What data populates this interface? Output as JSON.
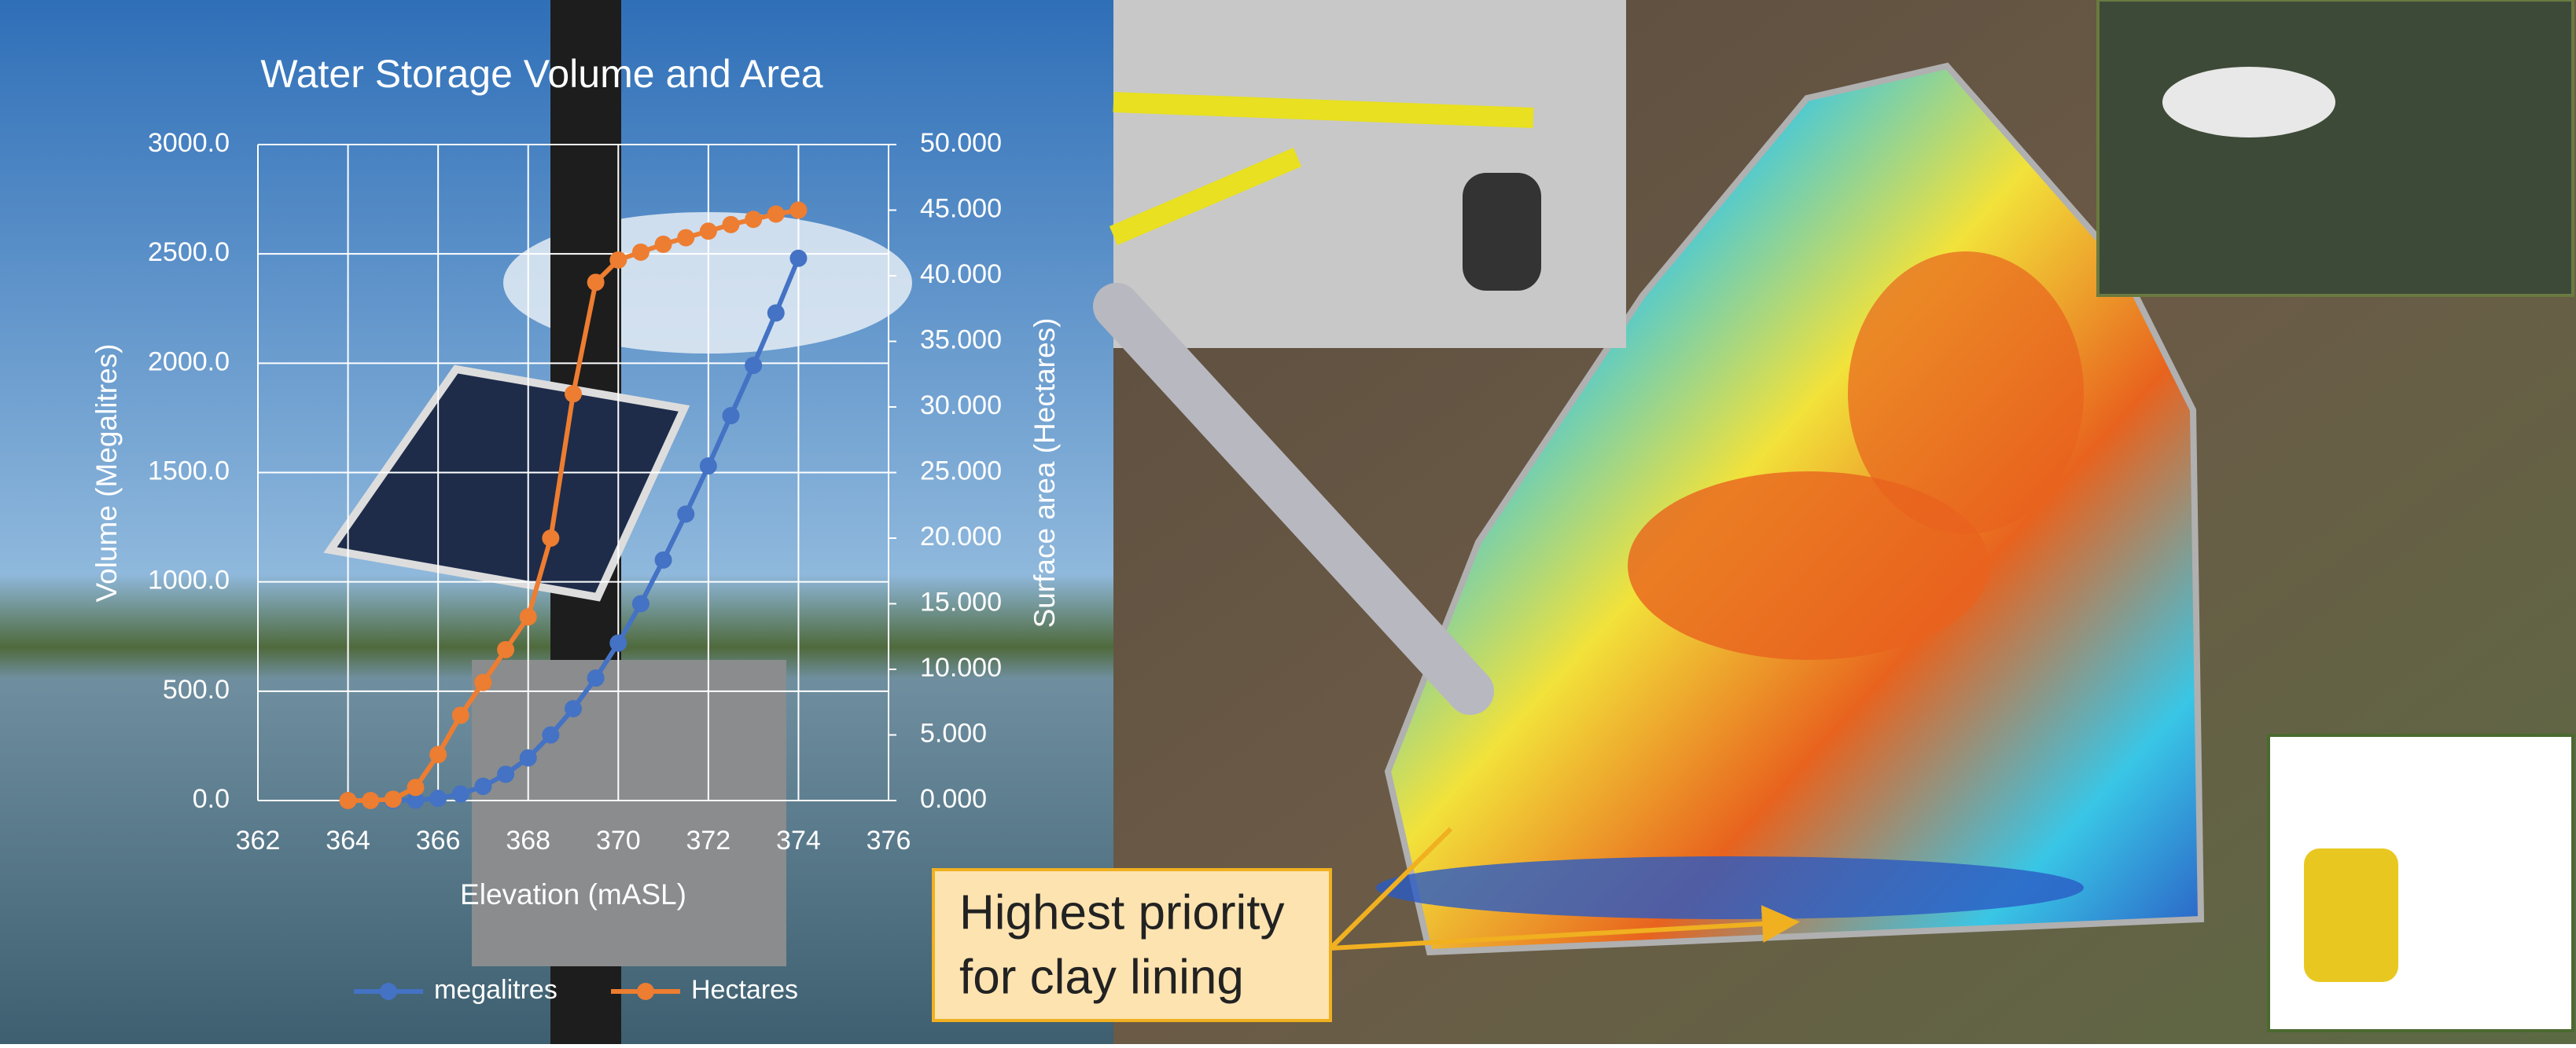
{
  "chart_data": {
    "type": "line",
    "title": "Water Storage Volume and Area",
    "x_label": "Elevation (mASL)",
    "y_label": "Volume (Megalitres)",
    "y2_label": "Surface area (Hectares)",
    "x": [
      364,
      364.5,
      365,
      365.5,
      366,
      366.5,
      367,
      367.5,
      368,
      368.5,
      369,
      369.5,
      370,
      370.5,
      371,
      371.5,
      372,
      372.5,
      373,
      373.5,
      374
    ],
    "series": [
      {
        "name": "megalitres",
        "color": "#4472c4",
        "axis": "y",
        "values": [
          0,
          0,
          0,
          2,
          10,
          30,
          65,
          120,
          195,
          300,
          420,
          560,
          720,
          900,
          1100,
          1310,
          1530,
          1760,
          1990,
          2230,
          2480
        ]
      },
      {
        "name": "Hectares",
        "color": "#ed7d31",
        "axis": "y2",
        "values": [
          0,
          0,
          0.1,
          1,
          3.5,
          6.5,
          9,
          11.5,
          14,
          20,
          31,
          39.5,
          41.2,
          41.8,
          42.4,
          42.9,
          43.4,
          43.9,
          44.3,
          44.7,
          45
        ]
      }
    ],
    "xlim": [
      362,
      376
    ],
    "xticks": [
      362,
      364,
      366,
      368,
      370,
      372,
      374,
      376
    ],
    "ylim": [
      0,
      3000
    ],
    "yticks": [
      {
        "value": 0,
        "label": "0.0"
      },
      {
        "value": 500,
        "label": "500.0"
      },
      {
        "value": 1000,
        "label": "1000.0"
      },
      {
        "value": 1500,
        "label": "1500.0"
      },
      {
        "value": 2000,
        "label": "2000.0"
      },
      {
        "value": 2500,
        "label": "2500.0"
      },
      {
        "value": 3000,
        "label": "3000.0"
      }
    ],
    "y2lim": [
      0,
      50
    ],
    "y2ticks": [
      {
        "value": 0,
        "label": "0.000"
      },
      {
        "value": 5,
        "label": "5.000"
      },
      {
        "value": 10,
        "label": "10.000"
      },
      {
        "value": 15,
        "label": "15.000"
      },
      {
        "value": 20,
        "label": "20.000"
      },
      {
        "value": 25,
        "label": "25.000"
      },
      {
        "value": 30,
        "label": "30.000"
      },
      {
        "value": 35,
        "label": "35.000"
      },
      {
        "value": 40,
        "label": "40.000"
      },
      {
        "value": 45,
        "label": "45.000"
      },
      {
        "value": 50,
        "label": "50.000"
      }
    ],
    "grid": true,
    "legend": "bottom",
    "annotation": [
      "Highest priority",
      "for clay lining"
    ]
  }
}
